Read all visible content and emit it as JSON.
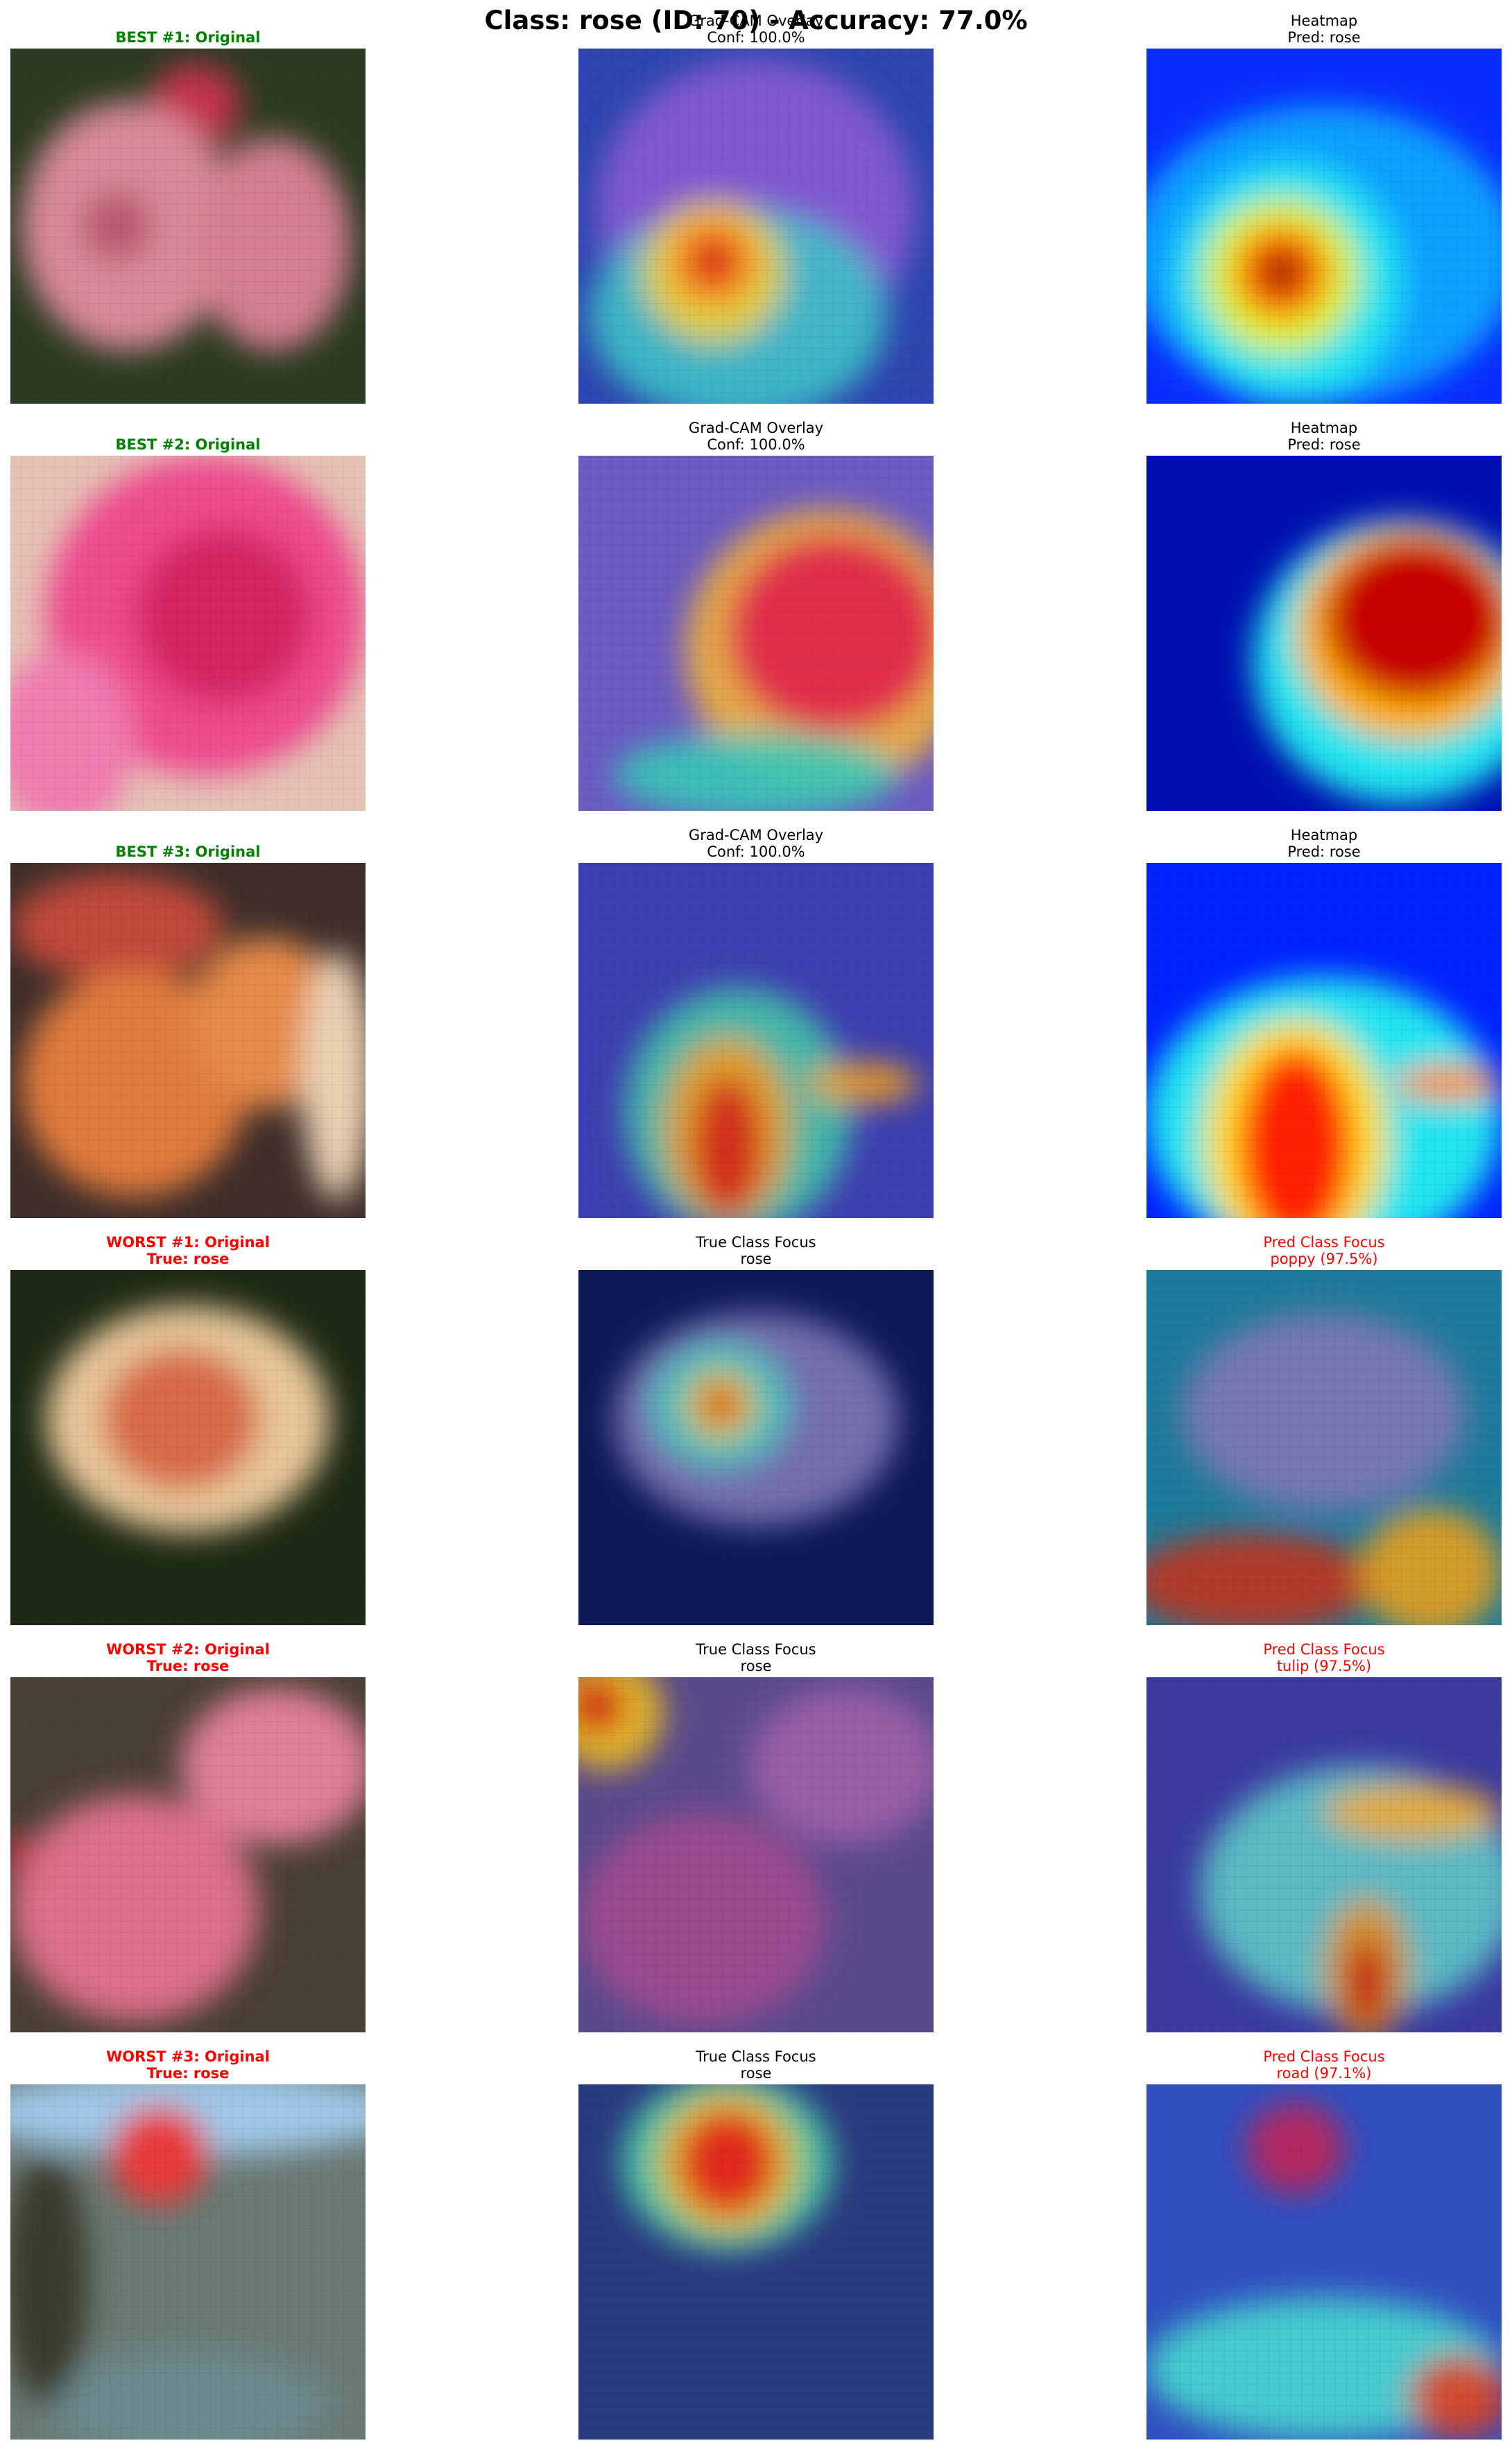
{
  "suptitle": "Class: rose (ID: 70) - Accuracy: 77.0%",
  "colors": {
    "best": "#008000",
    "worst": "#ff0000",
    "normal": "#000000"
  },
  "rows": [
    {
      "original": {
        "lines": [
          "BEST #1: Original"
        ],
        "color": "best",
        "bold": true
      },
      "middle": {
        "lines": [
          "Grad-CAM Overlay",
          "Conf: 100.0%"
        ],
        "color": "normal"
      },
      "right": {
        "lines": [
          "Heatmap",
          "Pred: rose"
        ],
        "color": "normal"
      }
    },
    {
      "original": {
        "lines": [
          "BEST #2: Original"
        ],
        "color": "best",
        "bold": true
      },
      "middle": {
        "lines": [
          "Grad-CAM Overlay",
          "Conf: 100.0%"
        ],
        "color": "normal"
      },
      "right": {
        "lines": [
          "Heatmap",
          "Pred: rose"
        ],
        "color": "normal"
      }
    },
    {
      "original": {
        "lines": [
          "BEST #3: Original"
        ],
        "color": "best",
        "bold": true
      },
      "middle": {
        "lines": [
          "Grad-CAM Overlay",
          "Conf: 100.0%"
        ],
        "color": "normal"
      },
      "right": {
        "lines": [
          "Heatmap",
          "Pred: rose"
        ],
        "color": "normal"
      }
    },
    {
      "original": {
        "lines": [
          "WORST #1: Original",
          "True: rose"
        ],
        "color": "worst",
        "bold": true
      },
      "middle": {
        "lines": [
          "True Class Focus",
          "rose"
        ],
        "color": "normal"
      },
      "right": {
        "lines": [
          "Pred Class Focus",
          "poppy (97.5%)"
        ],
        "color": "worst"
      }
    },
    {
      "original": {
        "lines": [
          "WORST #2: Original",
          "True: rose"
        ],
        "color": "worst",
        "bold": true
      },
      "middle": {
        "lines": [
          "True Class Focus",
          "rose"
        ],
        "color": "normal"
      },
      "right": {
        "lines": [
          "Pred Class Focus",
          "tulip (97.5%)"
        ],
        "color": "worst"
      }
    },
    {
      "original": {
        "lines": [
          "WORST #3: Original",
          "True: rose"
        ],
        "color": "worst",
        "bold": true
      },
      "middle": {
        "lines": [
          "True Class Focus",
          "rose"
        ],
        "color": "normal"
      },
      "right": {
        "lines": [
          "Pred Class Focus",
          "road (97.1%)"
        ],
        "color": "worst"
      }
    }
  ]
}
